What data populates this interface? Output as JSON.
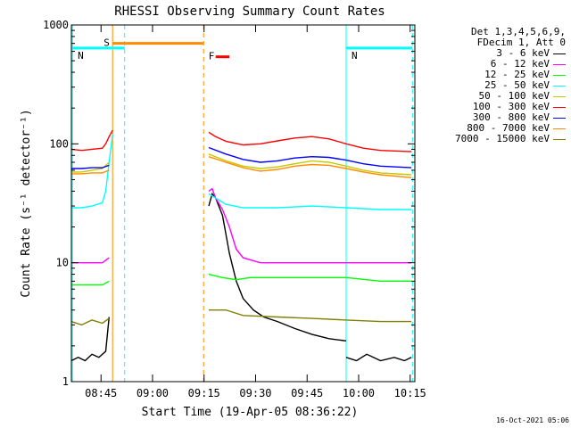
{
  "chart_data": {
    "type": "line",
    "title": "RHESSI Observing Summary Count Rates",
    "xlabel": "Start Time (19-Apr-05 08:36:22)",
    "ylabel": "Count Rate (s⁻¹ detector⁻¹)",
    "yscale": "log",
    "ylim": [
      1,
      1000
    ],
    "xlim_minutes": [
      0,
      100
    ],
    "x_tick_labels": [
      "08:45",
      "09:00",
      "09:15",
      "09:30",
      "09:45",
      "10:00",
      "10:15"
    ],
    "y_tick_labels": [
      "1",
      "10",
      "100",
      "1000"
    ],
    "legend_header": [
      "Det 1,3,4,5,6,9,",
      "FDecim 1, Att 0"
    ],
    "series": [
      {
        "name": "3 - 6 keV",
        "color": "#000000",
        "segments": [
          {
            "x": [
              0,
              2,
              4,
              6,
              8,
              10,
              11
            ],
            "y": [
              1.5,
              1.6,
              1.5,
              1.7,
              1.6,
              1.8,
              3.5
            ]
          },
          {
            "x": [
              40,
              41,
              42,
              44,
              46,
              48,
              50,
              53,
              56,
              60,
              65,
              70,
              75,
              80
            ],
            "y": [
              30,
              38,
              35,
              25,
              12,
              7,
              5,
              4,
              3.5,
              3.2,
              2.8,
              2.5,
              2.3,
              2.2
            ]
          },
          {
            "x": [
              80,
              83,
              86,
              90,
              94,
              97,
              99
            ],
            "y": [
              1.6,
              1.5,
              1.7,
              1.5,
              1.6,
              1.5,
              1.6
            ]
          }
        ]
      },
      {
        "name": "6 - 12 keV",
        "color": "#ff00ff",
        "segments": [
          {
            "x": [
              0,
              3,
              6,
              9,
              11
            ],
            "y": [
              10,
              10,
              10,
              10,
              11
            ]
          },
          {
            "x": [
              40,
              41,
              42,
              44,
              46,
              48,
              50,
              55,
              60,
              70,
              80,
              90,
              99
            ],
            "y": [
              40,
              42,
              35,
              28,
              20,
              13,
              11,
              10,
              10,
              10,
              10,
              10,
              10
            ]
          }
        ]
      },
      {
        "name": "12 - 25 keV",
        "color": "#00ff00",
        "segments": [
          {
            "x": [
              0,
              3,
              6,
              9,
              11
            ],
            "y": [
              6.5,
              6.5,
              6.5,
              6.5,
              7
            ]
          },
          {
            "x": [
              40,
              44,
              48,
              52,
              60,
              70,
              80,
              90,
              99
            ],
            "y": [
              8,
              7.5,
              7.2,
              7.5,
              7.5,
              7.5,
              7.5,
              7,
              7
            ]
          }
        ]
      },
      {
        "name": "25 - 50 keV",
        "color": "#00ffff",
        "segments": [
          {
            "x": [
              0,
              3,
              6,
              9,
              10,
              11,
              12
            ],
            "y": [
              29,
              29,
              30,
              32,
              40,
              70,
              120
            ]
          },
          {
            "x": [
              40,
              42,
              45,
              50,
              60,
              70,
              80,
              90,
              99
            ],
            "y": [
              38,
              35,
              31,
              29,
              29,
              30,
              29,
              28,
              28
            ]
          }
        ]
      },
      {
        "name": "50 - 100 keV",
        "color": "#c8c800",
        "segments": [
          {
            "x": [
              0,
              3,
              6,
              9,
              11
            ],
            "y": [
              58,
              58,
              60,
              62,
              70
            ]
          },
          {
            "x": [
              40,
              45,
              50,
              55,
              60,
              65,
              70,
              75,
              80,
              85,
              90,
              99
            ],
            "y": [
              82,
              72,
              65,
              62,
              64,
              68,
              72,
              70,
              65,
              60,
              57,
              55
            ]
          }
        ]
      },
      {
        "name": "100 - 300 keV",
        "color": "#ff0000",
        "segments": [
          {
            "x": [
              0,
              3,
              6,
              9,
              10,
              11,
              12
            ],
            "y": [
              90,
              88,
              90,
              92,
              100,
              115,
              130
            ]
          },
          {
            "x": [
              40,
              42,
              45,
              50,
              55,
              60,
              65,
              70,
              75,
              80,
              85,
              90,
              99
            ],
            "y": [
              125,
              115,
              105,
              98,
              100,
              106,
              112,
              115,
              110,
              100,
              92,
              88,
              86
            ]
          }
        ]
      },
      {
        "name": "300 - 800 keV",
        "color": "#0000ff",
        "segments": [
          {
            "x": [
              0,
              3,
              6,
              9,
              11
            ],
            "y": [
              62,
              62,
              63,
              63,
              66
            ]
          },
          {
            "x": [
              40,
              45,
              50,
              55,
              60,
              65,
              70,
              75,
              80,
              85,
              90,
              99
            ],
            "y": [
              93,
              82,
              74,
              70,
              72,
              76,
              78,
              77,
              73,
              68,
              65,
              63
            ]
          }
        ]
      },
      {
        "name": "800 - 7000 keV",
        "color": "#ff8c00",
        "segments": [
          {
            "x": [
              0,
              3,
              6,
              9,
              11
            ],
            "y": [
              56,
              56,
              57,
              57,
              60
            ]
          },
          {
            "x": [
              40,
              45,
              50,
              55,
              60,
              65,
              70,
              75,
              80,
              85,
              90,
              99
            ],
            "y": [
              78,
              70,
              63,
              59,
              61,
              65,
              67,
              66,
              62,
              58,
              55,
              52
            ]
          }
        ]
      },
      {
        "name": "7000 - 15000 keV",
        "color": "#808000",
        "segments": [
          {
            "x": [
              0,
              3,
              6,
              9,
              11
            ],
            "y": [
              3.2,
              3.0,
              3.3,
              3.1,
              3.4
            ]
          },
          {
            "x": [
              40,
              45,
              50,
              60,
              70,
              80,
              90,
              99
            ],
            "y": [
              4,
              4,
              3.6,
              3.5,
              3.4,
              3.3,
              3.2,
              3.2
            ]
          }
        ]
      }
    ],
    "vertical_markers": [
      {
        "x": 0.3,
        "color": "#00ffff",
        "style": "solid"
      },
      {
        "x": 12,
        "color": "#ff8c00",
        "style": "solid"
      },
      {
        "x": 15.5,
        "color": "#00ffff",
        "style": "dashed"
      },
      {
        "x": 38.5,
        "color": "#ff8c00",
        "style": "dashed"
      },
      {
        "x": 80,
        "color": "#00ffff",
        "style": "solid"
      },
      {
        "x": 99.3,
        "color": "#00ffff",
        "style": "dashed"
      }
    ],
    "flag_bars": [
      {
        "label": "S",
        "color": "#ff8c00",
        "x": [
          12,
          38.5
        ],
        "y": 700
      },
      {
        "label": "N",
        "color": "#00ffff",
        "x": [
          0.3,
          15.5
        ],
        "y": 640
      },
      {
        "label": "N",
        "color": "#00ffff",
        "x": [
          80,
          99.3
        ],
        "y": 640
      },
      {
        "label": "F",
        "color": "#ff0000",
        "x": [
          42,
          46
        ],
        "y": 540
      }
    ]
  },
  "footer": "16-Oct-2021 05:06"
}
